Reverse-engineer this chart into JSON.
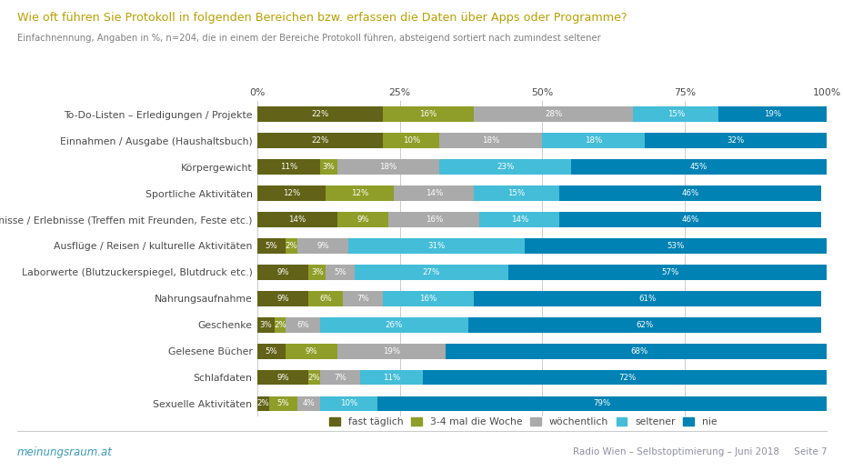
{
  "title": "Wie oft führen Sie Protokoll in folgenden Bereichen bzw. erfassen die Daten über Apps oder Programme?",
  "subtitle": "Einfachnennung, Angaben in %, n=204, die in einem der Bereiche Protokoll führen, absteigend sortiert nach zumindest seltener",
  "categories": [
    "To-Do-Listen – Erledigungen / Projekte",
    "Einnahmen / Ausgabe (Haushaltsbuch)",
    "Körpergewicht",
    "Sportliche Aktivitäten",
    "Private Ereignisse / Erlebnisse (Treffen mit Freunden, Feste etc.)",
    "Ausflüge / Reisen / kulturelle Aktivitäten",
    "Laborwerte (Blutzuckerspiegel, Blutdruck etc.)",
    "Nahrungsaufnahme",
    "Geschenke",
    "Gelesene Bücher",
    "Schlafdaten",
    "Sexuelle Aktivitäten"
  ],
  "series": {
    "fast täglich": [
      22,
      22,
      11,
      12,
      14,
      5,
      9,
      9,
      3,
      5,
      9,
      2
    ],
    "3-4 mal die Woche": [
      16,
      10,
      3,
      12,
      9,
      2,
      3,
      6,
      2,
      9,
      2,
      5
    ],
    "wöchentlich": [
      28,
      18,
      18,
      14,
      16,
      9,
      5,
      7,
      6,
      19,
      7,
      4
    ],
    "seltener": [
      15,
      18,
      23,
      15,
      14,
      31,
      27,
      16,
      26,
      0,
      11,
      10
    ],
    "nie": [
      19,
      32,
      45,
      46,
      46,
      53,
      57,
      61,
      62,
      68,
      72,
      79
    ]
  },
  "colors": {
    "fast täglich": "#626218",
    "3-4 mal die Woche": "#8f9e28",
    "wöchentlich": "#aaaaaa",
    "seltener": "#44bdd8",
    "nie": "#0082b4"
  },
  "footer_left": "meinungsraum.at",
  "footer_right": "Radio Wien – Selbstoptimierung – Juni 2018     Seite 7",
  "title_color": "#b8a000",
  "subtitle_color": "#808080",
  "label_color": "#4a4a4a",
  "footer_color": "#9090a0",
  "footer_left_color": "#3a9ab8",
  "bg_color": "#ffffff",
  "xlabel_ticks": [
    "0%",
    "25%",
    "50%",
    "75%",
    "100%"
  ],
  "xlabel_vals": [
    0,
    25,
    50,
    75,
    100
  ]
}
